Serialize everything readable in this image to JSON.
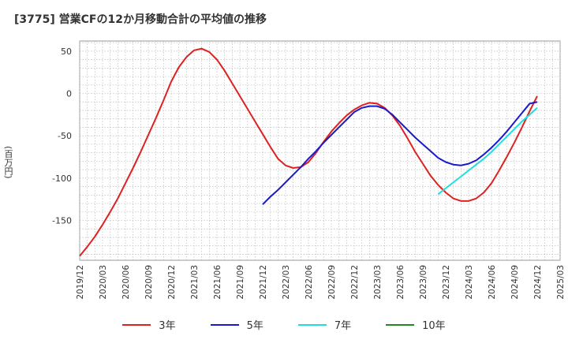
{
  "title": "[3775]  営業CFの12か月移動合計の平均値の推移",
  "chart_data": {
    "type": "line",
    "title": "[3775]  営業CFの12か月移動合計の平均値の推移",
    "ylabel": "(百万円)",
    "xlabel": "",
    "ylim": [
      -197,
      62
    ],
    "yticks": [
      50,
      0,
      -50,
      -100,
      -150
    ],
    "xticks": [
      "2019/12",
      "2020/03",
      "2020/06",
      "2020/09",
      "2020/12",
      "2021/03",
      "2021/06",
      "2021/09",
      "2021/12",
      "2022/03",
      "2022/06",
      "2022/09",
      "2022/12",
      "2023/03",
      "2023/06",
      "2023/09",
      "2023/12",
      "2024/03",
      "2024/06",
      "2024/09",
      "2024/12",
      "2025/03"
    ],
    "grid": true,
    "legend_position": "bottom",
    "series": [
      {
        "name": "3年",
        "color": "#dd2222",
        "points": [
          [
            "2019/12",
            -192
          ],
          [
            "2020/01",
            -181
          ],
          [
            "2020/02",
            -169
          ],
          [
            "2020/03",
            -155
          ],
          [
            "2020/04",
            -140
          ],
          [
            "2020/05",
            -124
          ],
          [
            "2020/06",
            -106
          ],
          [
            "2020/07",
            -88
          ],
          [
            "2020/08",
            -69
          ],
          [
            "2020/09",
            -49
          ],
          [
            "2020/10",
            -29
          ],
          [
            "2020/11",
            -8
          ],
          [
            "2020/12",
            14
          ],
          [
            "2021/01",
            31
          ],
          [
            "2021/02",
            43
          ],
          [
            "2021/03",
            51
          ],
          [
            "2021/04",
            53
          ],
          [
            "2021/05",
            49
          ],
          [
            "2021/06",
            40
          ],
          [
            "2021/07",
            27
          ],
          [
            "2021/08",
            12
          ],
          [
            "2021/09",
            -3
          ],
          [
            "2021/10",
            -18
          ],
          [
            "2021/11",
            -33
          ],
          [
            "2021/12",
            -48
          ],
          [
            "2022/01",
            -63
          ],
          [
            "2022/02",
            -77
          ],
          [
            "2022/03",
            -85
          ],
          [
            "2022/04",
            -88
          ],
          [
            "2022/05",
            -87
          ],
          [
            "2022/06",
            -81
          ],
          [
            "2022/07",
            -70
          ],
          [
            "2022/08",
            -57
          ],
          [
            "2022/09",
            -45
          ],
          [
            "2022/10",
            -35
          ],
          [
            "2022/11",
            -26
          ],
          [
            "2022/12",
            -19
          ],
          [
            "2023/01",
            -14
          ],
          [
            "2023/02",
            -11
          ],
          [
            "2023/03",
            -12
          ],
          [
            "2023/04",
            -17
          ],
          [
            "2023/05",
            -26
          ],
          [
            "2023/06",
            -38
          ],
          [
            "2023/07",
            -53
          ],
          [
            "2023/08",
            -69
          ],
          [
            "2023/09",
            -83
          ],
          [
            "2023/10",
            -97
          ],
          [
            "2023/11",
            -108
          ],
          [
            "2023/12",
            -117
          ],
          [
            "2024/01",
            -124
          ],
          [
            "2024/02",
            -127
          ],
          [
            "2024/03",
            -127
          ],
          [
            "2024/04",
            -124
          ],
          [
            "2024/05",
            -117
          ],
          [
            "2024/06",
            -106
          ],
          [
            "2024/07",
            -91
          ],
          [
            "2024/08",
            -75
          ],
          [
            "2024/09",
            -58
          ],
          [
            "2024/10",
            -40
          ],
          [
            "2024/11",
            -21
          ],
          [
            "2024/12",
            -3
          ]
        ]
      },
      {
        "name": "5年",
        "color": "#1a1acc",
        "points": [
          [
            "2021/12",
            -131
          ],
          [
            "2022/01",
            -122
          ],
          [
            "2022/02",
            -114
          ],
          [
            "2022/03",
            -105
          ],
          [
            "2022/04",
            -96
          ],
          [
            "2022/05",
            -87
          ],
          [
            "2022/06",
            -77
          ],
          [
            "2022/07",
            -68
          ],
          [
            "2022/08",
            -58
          ],
          [
            "2022/09",
            -49
          ],
          [
            "2022/10",
            -40
          ],
          [
            "2022/11",
            -31
          ],
          [
            "2022/12",
            -22
          ],
          [
            "2023/01",
            -17
          ],
          [
            "2023/02",
            -15
          ],
          [
            "2023/03",
            -15
          ],
          [
            "2023/04",
            -18
          ],
          [
            "2023/05",
            -25
          ],
          [
            "2023/06",
            -34
          ],
          [
            "2023/07",
            -43
          ],
          [
            "2023/08",
            -52
          ],
          [
            "2023/09",
            -60
          ],
          [
            "2023/10",
            -68
          ],
          [
            "2023/11",
            -76
          ],
          [
            "2023/12",
            -81
          ],
          [
            "2024/01",
            -84
          ],
          [
            "2024/02",
            -85
          ],
          [
            "2024/03",
            -83
          ],
          [
            "2024/04",
            -79
          ],
          [
            "2024/05",
            -72
          ],
          [
            "2024/06",
            -64
          ],
          [
            "2024/07",
            -55
          ],
          [
            "2024/08",
            -45
          ],
          [
            "2024/09",
            -34
          ],
          [
            "2024/10",
            -23
          ],
          [
            "2024/11",
            -12
          ],
          [
            "2024/12",
            -10
          ]
        ]
      },
      {
        "name": "7年",
        "color": "#22dddd",
        "points": [
          [
            "2023/11",
            -119
          ],
          [
            "2023/12",
            -112
          ],
          [
            "2024/01",
            -105
          ],
          [
            "2024/02",
            -98
          ],
          [
            "2024/03",
            -91
          ],
          [
            "2024/04",
            -84
          ],
          [
            "2024/05",
            -77
          ],
          [
            "2024/06",
            -69
          ],
          [
            "2024/07",
            -60
          ],
          [
            "2024/08",
            -51
          ],
          [
            "2024/09",
            -42
          ],
          [
            "2024/10",
            -33
          ],
          [
            "2024/11",
            -25
          ],
          [
            "2024/12",
            -17
          ]
        ]
      },
      {
        "name": "10年",
        "color": "#228822",
        "points": []
      }
    ]
  }
}
